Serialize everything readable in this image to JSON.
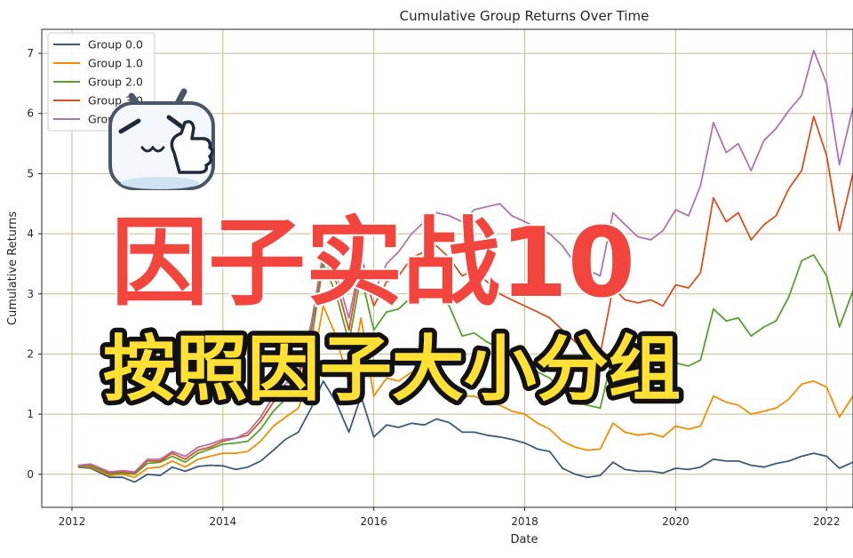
{
  "chart_data": {
    "type": "line",
    "title": "Cumulative Group Returns Over Time",
    "xlabel": "Date",
    "ylabel": "Cumulative Returns",
    "xlim": [
      2011.6,
      2022.35
    ],
    "ylim": [
      -0.55,
      7.4
    ],
    "x_ticks": [
      2012,
      2014,
      2016,
      2018,
      2020,
      2022
    ],
    "y_ticks": [
      0,
      1,
      2,
      3,
      4,
      5,
      6,
      7
    ],
    "grid": true,
    "legend_position": "top-left",
    "series": [
      {
        "name": "Group 0.0",
        "color": "#3b5b7c",
        "x": [
          2012.08,
          2012.25,
          2012.5,
          2012.67,
          2012.83,
          2013.0,
          2013.17,
          2013.33,
          2013.5,
          2013.67,
          2013.83,
          2014.0,
          2014.17,
          2014.33,
          2014.5,
          2014.67,
          2014.83,
          2015.0,
          2015.17,
          2015.33,
          2015.5,
          2015.67,
          2015.83,
          2016.0,
          2016.17,
          2016.33,
          2016.5,
          2016.67,
          2016.83,
          2017.0,
          2017.17,
          2017.33,
          2017.5,
          2017.67,
          2017.83,
          2018.0,
          2018.17,
          2018.33,
          2018.5,
          2018.67,
          2018.83,
          2019.0,
          2019.17,
          2019.33,
          2019.5,
          2019.67,
          2019.83,
          2020.0,
          2020.17,
          2020.33,
          2020.5,
          2020.67,
          2020.83,
          2021.0,
          2021.17,
          2021.33,
          2021.5,
          2021.67,
          2021.83,
          2022.0,
          2022.17,
          2022.35
        ],
        "values": [
          0.12,
          0.1,
          -0.05,
          -0.05,
          -0.13,
          0.0,
          -0.02,
          0.12,
          0.05,
          0.13,
          0.15,
          0.14,
          0.08,
          0.12,
          0.22,
          0.4,
          0.58,
          0.7,
          1.1,
          1.55,
          1.2,
          0.7,
          1.3,
          0.62,
          0.82,
          0.78,
          0.85,
          0.82,
          0.92,
          0.86,
          0.7,
          0.7,
          0.65,
          0.62,
          0.58,
          0.52,
          0.42,
          0.38,
          0.1,
          0.0,
          -0.05,
          -0.02,
          0.2,
          0.08,
          0.05,
          0.05,
          0.02,
          0.1,
          0.08,
          0.12,
          0.25,
          0.22,
          0.22,
          0.15,
          0.12,
          0.18,
          0.22,
          0.3,
          0.35,
          0.3,
          0.1,
          0.2
        ]
      },
      {
        "name": "Group 1.0",
        "color": "#f28e00",
        "x": [
          2012.08,
          2012.25,
          2012.5,
          2012.67,
          2012.83,
          2013.0,
          2013.17,
          2013.33,
          2013.5,
          2013.67,
          2013.83,
          2014.0,
          2014.17,
          2014.33,
          2014.5,
          2014.67,
          2014.83,
          2015.0,
          2015.17,
          2015.33,
          2015.5,
          2015.67,
          2015.83,
          2016.0,
          2016.17,
          2016.33,
          2016.5,
          2016.67,
          2016.83,
          2017.0,
          2017.17,
          2017.33,
          2017.5,
          2017.67,
          2017.83,
          2018.0,
          2018.17,
          2018.33,
          2018.5,
          2018.67,
          2018.83,
          2019.0,
          2019.17,
          2019.33,
          2019.5,
          2019.67,
          2019.83,
          2020.0,
          2020.17,
          2020.33,
          2020.5,
          2020.67,
          2020.83,
          2021.0,
          2021.17,
          2021.33,
          2021.5,
          2021.67,
          2021.83,
          2022.0,
          2022.17,
          2022.35
        ],
        "values": [
          0.13,
          0.12,
          -0.02,
          0.0,
          -0.05,
          0.1,
          0.12,
          0.22,
          0.12,
          0.25,
          0.3,
          0.35,
          0.35,
          0.38,
          0.55,
          0.8,
          0.95,
          1.1,
          1.7,
          2.8,
          2.3,
          1.5,
          2.6,
          1.3,
          1.6,
          1.55,
          1.7,
          1.6,
          1.65,
          1.55,
          1.3,
          1.3,
          1.2,
          1.15,
          1.05,
          1.0,
          0.85,
          0.75,
          0.55,
          0.45,
          0.4,
          0.42,
          0.85,
          0.7,
          0.65,
          0.68,
          0.62,
          0.8,
          0.75,
          0.8,
          1.3,
          1.2,
          1.15,
          1.0,
          1.05,
          1.1,
          1.25,
          1.5,
          1.55,
          1.45,
          0.95,
          1.3
        ]
      },
      {
        "name": "Group 2.0",
        "color": "#57a02e",
        "x": [
          2012.08,
          2012.25,
          2012.5,
          2012.67,
          2012.83,
          2013.0,
          2013.17,
          2013.33,
          2013.5,
          2013.67,
          2013.83,
          2014.0,
          2014.17,
          2014.33,
          2014.5,
          2014.67,
          2014.83,
          2015.0,
          2015.17,
          2015.33,
          2015.5,
          2015.67,
          2015.83,
          2016.0,
          2016.17,
          2016.33,
          2016.5,
          2016.67,
          2016.83,
          2017.0,
          2017.17,
          2017.33,
          2017.5,
          2017.67,
          2017.83,
          2018.0,
          2018.17,
          2018.33,
          2018.5,
          2018.67,
          2018.83,
          2019.0,
          2019.17,
          2019.33,
          2019.5,
          2019.67,
          2019.83,
          2020.0,
          2020.17,
          2020.33,
          2020.5,
          2020.67,
          2020.83,
          2021.0,
          2021.17,
          2021.33,
          2021.5,
          2021.67,
          2021.83,
          2022.0,
          2022.17,
          2022.35
        ],
        "values": [
          0.13,
          0.14,
          0.0,
          0.02,
          0.0,
          0.18,
          0.2,
          0.3,
          0.2,
          0.35,
          0.42,
          0.5,
          0.52,
          0.55,
          0.75,
          1.05,
          1.25,
          1.45,
          2.2,
          3.5,
          3.0,
          2.2,
          3.3,
          2.4,
          2.7,
          2.75,
          2.95,
          2.9,
          3.0,
          2.8,
          2.3,
          2.35,
          2.2,
          2.1,
          2.0,
          1.9,
          1.7,
          1.6,
          1.4,
          1.2,
          1.15,
          1.1,
          2.0,
          1.95,
          1.85,
          1.9,
          1.8,
          1.85,
          1.8,
          1.9,
          2.75,
          2.55,
          2.6,
          2.3,
          2.45,
          2.55,
          2.95,
          3.55,
          3.65,
          3.3,
          2.45,
          3.05
        ]
      },
      {
        "name": "Group 3.0",
        "color": "#d9501d",
        "x": [
          2012.08,
          2012.25,
          2012.5,
          2012.67,
          2012.83,
          2013.0,
          2013.17,
          2013.33,
          2013.5,
          2013.67,
          2013.83,
          2014.0,
          2014.17,
          2014.33,
          2014.5,
          2014.67,
          2014.83,
          2015.0,
          2015.17,
          2015.33,
          2015.5,
          2015.67,
          2015.83,
          2016.0,
          2016.17,
          2016.33,
          2016.5,
          2016.67,
          2016.83,
          2017.0,
          2017.17,
          2017.33,
          2017.5,
          2017.67,
          2017.83,
          2018.0,
          2018.17,
          2018.33,
          2018.5,
          2018.67,
          2018.83,
          2019.0,
          2019.17,
          2019.33,
          2019.5,
          2019.67,
          2019.83,
          2020.0,
          2020.17,
          2020.33,
          2020.5,
          2020.67,
          2020.83,
          2021.0,
          2021.17,
          2021.33,
          2021.5,
          2021.67,
          2021.83,
          2022.0,
          2022.17,
          2022.35
        ],
        "values": [
          0.14,
          0.16,
          0.02,
          0.04,
          0.02,
          0.22,
          0.22,
          0.35,
          0.25,
          0.4,
          0.45,
          0.55,
          0.6,
          0.65,
          0.88,
          1.2,
          1.4,
          1.6,
          2.4,
          3.6,
          3.2,
          2.4,
          3.5,
          2.8,
          3.2,
          3.3,
          3.6,
          3.7,
          3.8,
          3.6,
          3.3,
          3.4,
          3.2,
          3.0,
          2.9,
          2.8,
          2.7,
          2.6,
          2.4,
          2.2,
          2.1,
          2.0,
          3.1,
          2.9,
          2.85,
          2.9,
          2.8,
          3.15,
          3.1,
          3.35,
          4.6,
          4.2,
          4.35,
          3.9,
          4.15,
          4.3,
          4.75,
          5.05,
          5.95,
          5.3,
          4.05,
          5.0
        ]
      },
      {
        "name": "Group 4.0",
        "color": "#ad73b0",
        "x": [
          2012.08,
          2012.25,
          2012.5,
          2012.67,
          2012.83,
          2013.0,
          2013.17,
          2013.33,
          2013.5,
          2013.67,
          2013.83,
          2014.0,
          2014.17,
          2014.33,
          2014.5,
          2014.67,
          2014.83,
          2015.0,
          2015.17,
          2015.33,
          2015.5,
          2015.67,
          2015.83,
          2016.0,
          2016.17,
          2016.33,
          2016.5,
          2016.67,
          2016.83,
          2017.0,
          2017.17,
          2017.33,
          2017.5,
          2017.67,
          2017.83,
          2018.0,
          2018.17,
          2018.33,
          2018.5,
          2018.67,
          2018.83,
          2019.0,
          2019.17,
          2019.33,
          2019.5,
          2019.67,
          2019.83,
          2020.0,
          2020.17,
          2020.33,
          2020.5,
          2020.67,
          2020.83,
          2021.0,
          2021.17,
          2021.33,
          2021.5,
          2021.67,
          2021.83,
          2022.0,
          2022.17,
          2022.35
        ],
        "values": [
          0.15,
          0.17,
          0.04,
          0.06,
          0.04,
          0.25,
          0.25,
          0.38,
          0.3,
          0.45,
          0.5,
          0.58,
          0.6,
          0.7,
          0.95,
          1.3,
          1.5,
          1.7,
          2.5,
          3.7,
          3.35,
          2.6,
          3.6,
          3.0,
          3.5,
          3.7,
          4.0,
          4.2,
          4.35,
          4.3,
          4.2,
          4.4,
          4.45,
          4.5,
          4.3,
          4.2,
          4.1,
          4.0,
          3.8,
          3.5,
          3.4,
          3.3,
          4.35,
          4.15,
          3.95,
          3.9,
          4.05,
          4.4,
          4.3,
          4.8,
          5.85,
          5.35,
          5.5,
          5.05,
          5.55,
          5.75,
          6.05,
          6.3,
          7.05,
          6.5,
          5.15,
          6.1
        ]
      }
    ]
  },
  "overlay": {
    "title_line1": "因子实战10",
    "title_line2": "按照因子大小分组"
  },
  "sticker": {
    "icon": "bilibili-tv-mascot-thumbs-up"
  }
}
